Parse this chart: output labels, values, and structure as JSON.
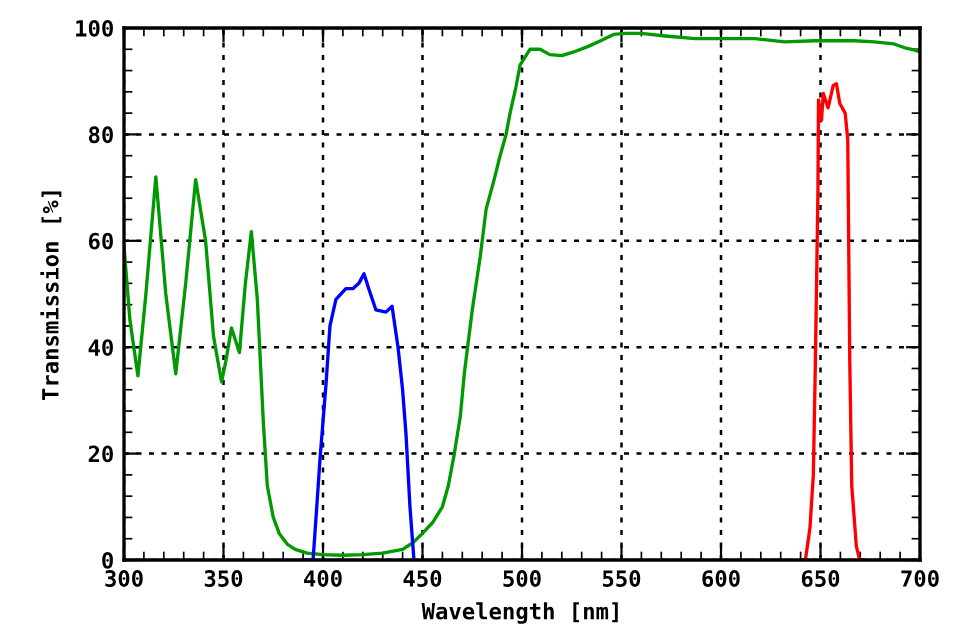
{
  "chart_data": {
    "type": "line",
    "xlabel": "Wavelength [nm]",
    "ylabel": "Transmission [%]",
    "xlim": [
      300,
      700
    ],
    "ylim": [
      0,
      100
    ],
    "xticks": [
      300,
      350,
      400,
      450,
      500,
      550,
      600,
      650,
      700
    ],
    "yticks": [
      0,
      20,
      40,
      60,
      80,
      100
    ],
    "grid": true,
    "marker": "none",
    "line_style": "solid",
    "series": [
      {
        "color": "#009900",
        "x": [
          300,
          303,
          307,
          311,
          316,
          321,
          326,
          331,
          336,
          341,
          345,
          349,
          351,
          354,
          358,
          361,
          364,
          367,
          370,
          372,
          375,
          378,
          382,
          386,
          392,
          400,
          410,
          420,
          430,
          440,
          445,
          450,
          455,
          460,
          463,
          466,
          469,
          471,
          475,
          479,
          482,
          486,
          489,
          492,
          494,
          497,
          499,
          504,
          509,
          514,
          520,
          526,
          533,
          539,
          546,
          552,
          560,
          572,
          587,
          602,
          617,
          632,
          647,
          667,
          677,
          687,
          693,
          698,
          700
        ],
        "values": [
          59,
          45,
          34.6,
          50,
          72,
          50,
          35,
          52,
          71.5,
          60,
          42,
          33.5,
          37,
          43.6,
          39,
          52,
          61.7,
          49,
          26,
          14,
          8,
          5,
          3,
          2,
          1.3,
          1,
          0.9,
          1,
          1.3,
          2,
          3.2,
          5,
          7,
          10,
          14,
          20,
          27,
          35,
          47,
          57,
          66,
          71.5,
          76,
          80,
          84,
          89,
          93,
          96,
          96,
          95,
          94.8,
          95.5,
          96.5,
          97.5,
          98.8,
          99,
          99,
          98.5,
          98,
          98,
          98,
          97.4,
          97.6,
          97.6,
          97.4,
          97,
          96.2,
          95.8,
          95.5
        ]
      },
      {
        "color": "#0000ff",
        "x": [
          390,
          395,
          396.5,
          398.5,
          401.5,
          403.5,
          406.5,
          411.5,
          415,
          418,
          420.6,
          423,
          426.6,
          431.6,
          434.7,
          437.7,
          440,
          441.7,
          443.7,
          445.7
        ],
        "values": [
          0,
          0,
          8,
          19,
          33,
          44,
          49,
          51,
          51,
          52,
          53.8,
          51,
          47,
          46.6,
          47.7,
          40,
          32,
          23.7,
          10,
          0
        ]
      },
      {
        "color": "#ff0000",
        "x": [
          640,
          642.4,
          644.7,
          646.4,
          647.4,
          648.7,
          649,
          650.5,
          651.4,
          653.8,
          656.4,
          658,
          659.7,
          662.4,
          663.7,
          664.7,
          665.7,
          668,
          669.7,
          672
        ],
        "values": [
          0,
          0,
          6,
          16,
          36.5,
          69,
          86.5,
          82.7,
          87.7,
          85,
          89.2,
          89.5,
          85.8,
          84,
          79,
          37.6,
          14,
          2.6,
          0,
          0
        ]
      }
    ]
  }
}
